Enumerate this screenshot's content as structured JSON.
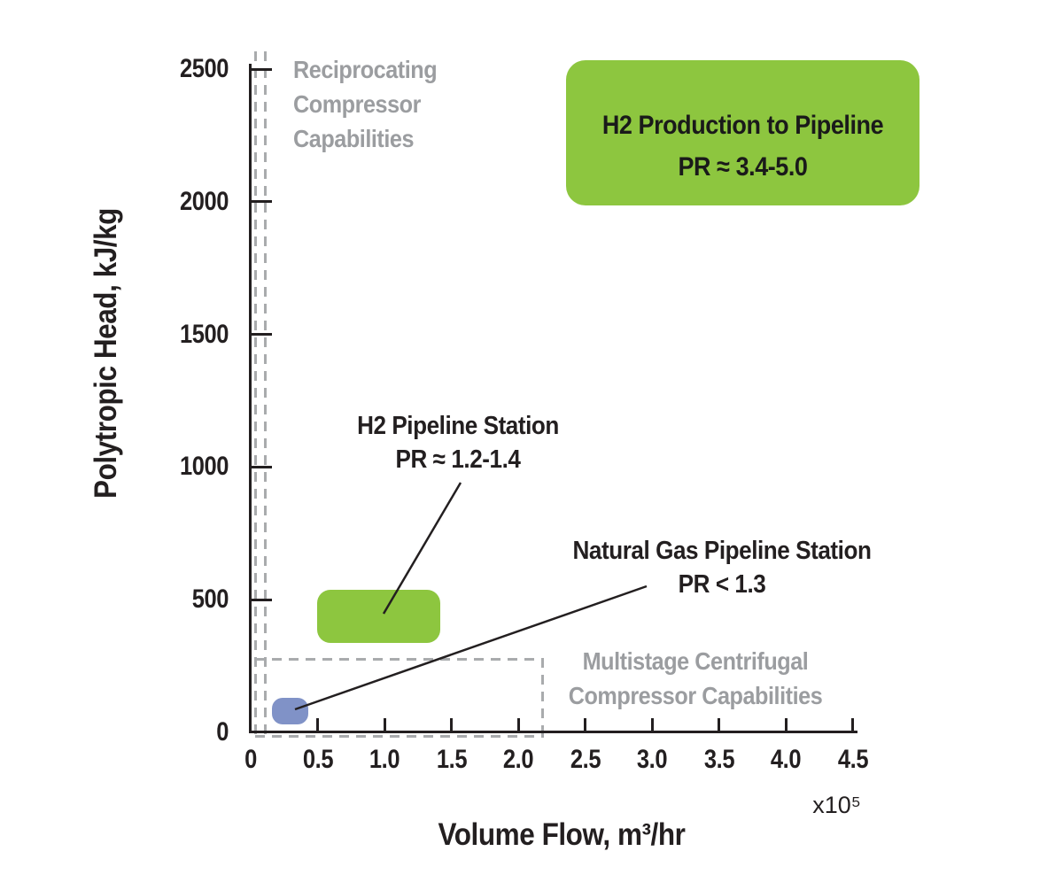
{
  "chart_data": {
    "type": "area",
    "title": "",
    "xlabel": "Volume Flow, m³/hr",
    "x_scale_note": "x10⁵",
    "ylabel": "Polytropic Head, kJ/kg",
    "xlim_1e5_m3hr": [
      0,
      4.5
    ],
    "ylim_kJkg": [
      0,
      2500
    ],
    "x_ticks": [
      "0",
      "0.5",
      "1.0",
      "1.5",
      "2.0",
      "2.5",
      "3.0",
      "3.5",
      "4.0",
      "4.5"
    ],
    "y_ticks": [
      "0",
      "500",
      "1000",
      "1500",
      "2000",
      "2500"
    ],
    "grid": "off",
    "legend": "none",
    "regions": [
      {
        "name": "H2 Production to Pipeline",
        "pressure_ratio": "PR ≈ 3.4-5.0",
        "x_range_1e5_m3hr": [
          2.35,
          5.0
        ],
        "y_range_kJkg": [
          1980,
          2530
        ],
        "color": "#8dc63f",
        "label_placement": "inside box"
      },
      {
        "name": "H2 Pipeline Station",
        "pressure_ratio": "PR ≈ 1.2-1.4",
        "x_range_1e5_m3hr": [
          0.5,
          1.4
        ],
        "y_range_kJkg": [
          340,
          535
        ],
        "color": "#8dc63f",
        "label_placement": "above with leader line"
      },
      {
        "name": "Natural Gas Pipeline Station",
        "pressure_ratio": "PR < 1.3",
        "x_range_1e5_m3hr": [
          0.16,
          0.43
        ],
        "y_range_kJkg": [
          30,
          130
        ],
        "color": "#8092c7",
        "label_placement": "above-right with leader line"
      }
    ],
    "capability_envelopes": [
      {
        "name": "Reciprocating Compressor Capabilities",
        "style": "gray dashed vertical band",
        "x_range_1e5_m3hr": [
          0.03,
          0.1
        ],
        "y_max_kJkg": 2500
      },
      {
        "name": "Multistage Centrifugal Compressor Capabilities",
        "style": "gray dashed rectangle",
        "x_range_1e5_m3hr": [
          0.03,
          2.18
        ],
        "y_max_kJkg": 275
      }
    ]
  },
  "labels": {
    "h2_production_line1": "H2 Production to Pipeline",
    "h2_production_line2": "PR ≈ 3.4-5.0",
    "h2_station_line1": "H2 Pipeline Station",
    "h2_station_line2": "PR ≈ 1.2-1.4",
    "ng_station_line1": "Natural Gas Pipeline Station",
    "ng_station_line2": "PR < 1.3",
    "recip_line1": "Reciprocating",
    "recip_line2": "Compressor",
    "recip_line3": "Capabilities",
    "multistage_line1": "Multistage Centrifugal",
    "multistage_line2": "Compressor Capabilities",
    "x_axis_title": "Volume Flow, m³/hr",
    "x_axis_multiplier": "x10⁵",
    "y_axis_title": "Polytropic Head, kJ/kg"
  },
  "colors": {
    "region_green": "#8dc63f",
    "region_blue": "#8092c7",
    "gray_label": "#9b9da0",
    "gray_dash": "#a9abad",
    "axis_black": "#231f20"
  }
}
